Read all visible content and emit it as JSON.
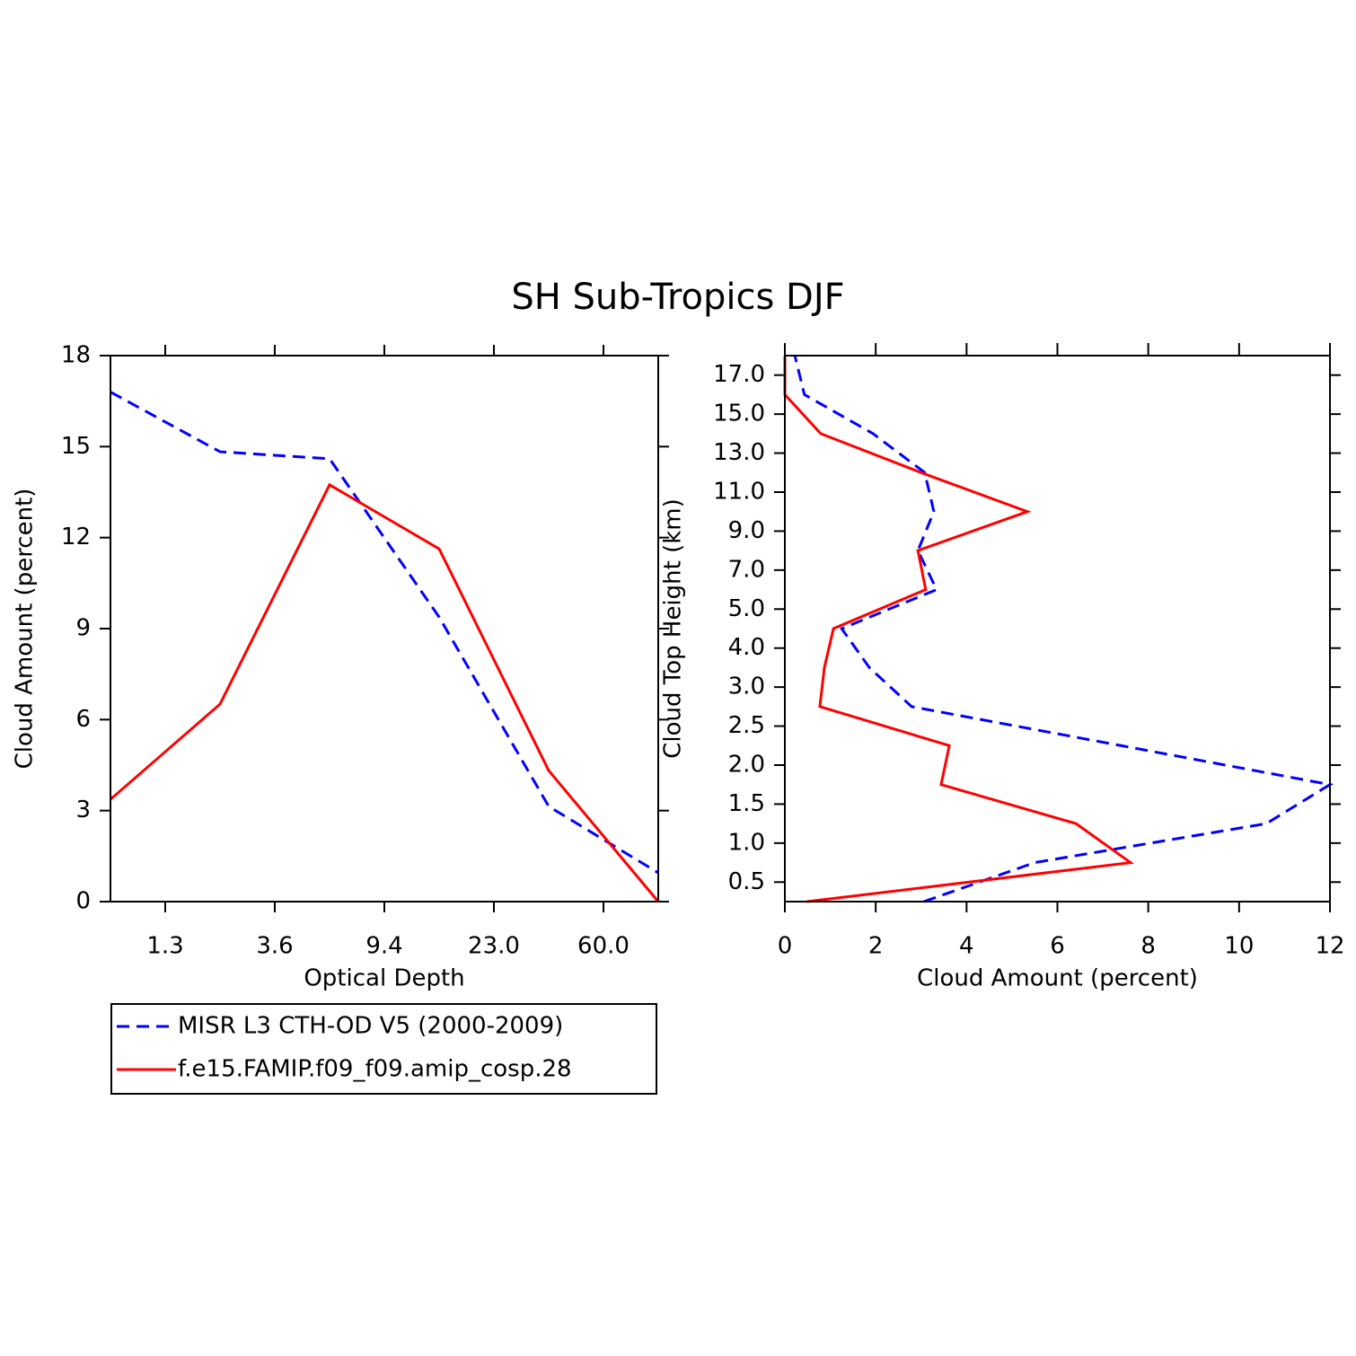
{
  "title": "SH Sub-Tropics DJF",
  "chart_data": [
    {
      "type": "line",
      "x_label": "Optical Depth",
      "y_label": "Cloud Amount (percent)",
      "x": [
        0,
        1,
        2,
        3,
        4,
        5
      ],
      "xlim": [
        0,
        5
      ],
      "xticks": [
        {
          "value": 0.5,
          "label": "1.3"
        },
        {
          "value": 1.5,
          "label": "3.6"
        },
        {
          "value": 2.5,
          "label": "9.4"
        },
        {
          "value": 3.5,
          "label": "23.0"
        },
        {
          "value": 4.5,
          "label": "60.0"
        }
      ],
      "ylim": [
        0,
        18
      ],
      "yticks": [
        0,
        3,
        6,
        9,
        12,
        15,
        18
      ],
      "series": [
        {
          "name": "MISR L3 CTH-OD V5 (2000-2009)",
          "color": "#0000ff",
          "dash": "dashed",
          "values": [
            16.8,
            14.83,
            14.6,
            9.38,
            3.14,
            0.95
          ]
        },
        {
          "name": "f.e15.FAMIP.f09_f09.amip_cosp.28",
          "color": "#ff0000",
          "dash": "solid",
          "values": [
            3.37,
            6.51,
            13.74,
            11.63,
            4.32,
            0
          ]
        }
      ]
    },
    {
      "type": "hline",
      "x_label": "Cloud Amount (percent)",
      "y_label": "Cloud Top Height (km)",
      "y": [
        0,
        1,
        2,
        3,
        4,
        5,
        6,
        7,
        8,
        9,
        10,
        11,
        12,
        13,
        14
      ],
      "ylim": [
        0,
        14
      ],
      "yticks": [
        {
          "value": 0.5,
          "label": "0.5"
        },
        {
          "value": 1.5,
          "label": "1.0"
        },
        {
          "value": 2.5,
          "label": "1.5"
        },
        {
          "value": 3.5,
          "label": "2.0"
        },
        {
          "value": 4.5,
          "label": "2.5"
        },
        {
          "value": 5.5,
          "label": "3.0"
        },
        {
          "value": 6.5,
          "label": "4.0"
        },
        {
          "value": 7.5,
          "label": "5.0"
        },
        {
          "value": 8.5,
          "label": "7.0"
        },
        {
          "value": 9.5,
          "label": "9.0"
        },
        {
          "value": 10.5,
          "label": "11.0"
        },
        {
          "value": 11.5,
          "label": "13.0"
        },
        {
          "value": 12.5,
          "label": "15.0"
        },
        {
          "value": 13.5,
          "label": "17.0"
        }
      ],
      "xlim": [
        0,
        12
      ],
      "xticks": [
        0,
        2,
        4,
        6,
        8,
        10,
        12
      ],
      "series": [
        {
          "color": "#0000ff",
          "dash": "dashed",
          "values": [
            3.06,
            5.5,
            10.6,
            12.0,
            7.4,
            2.79,
            1.86,
            1.25,
            3.34,
            2.93,
            3.28,
            3.08,
            1.94,
            0.43,
            0.22
          ]
        },
        {
          "color": "#ff0000",
          "dash": "solid",
          "values": [
            0.49,
            7.61,
            6.41,
            3.44,
            3.62,
            0.77,
            0.87,
            1.07,
            3.1,
            2.93,
            5.34,
            3.0,
            0.79,
            0,
            0
          ]
        }
      ]
    }
  ]
}
